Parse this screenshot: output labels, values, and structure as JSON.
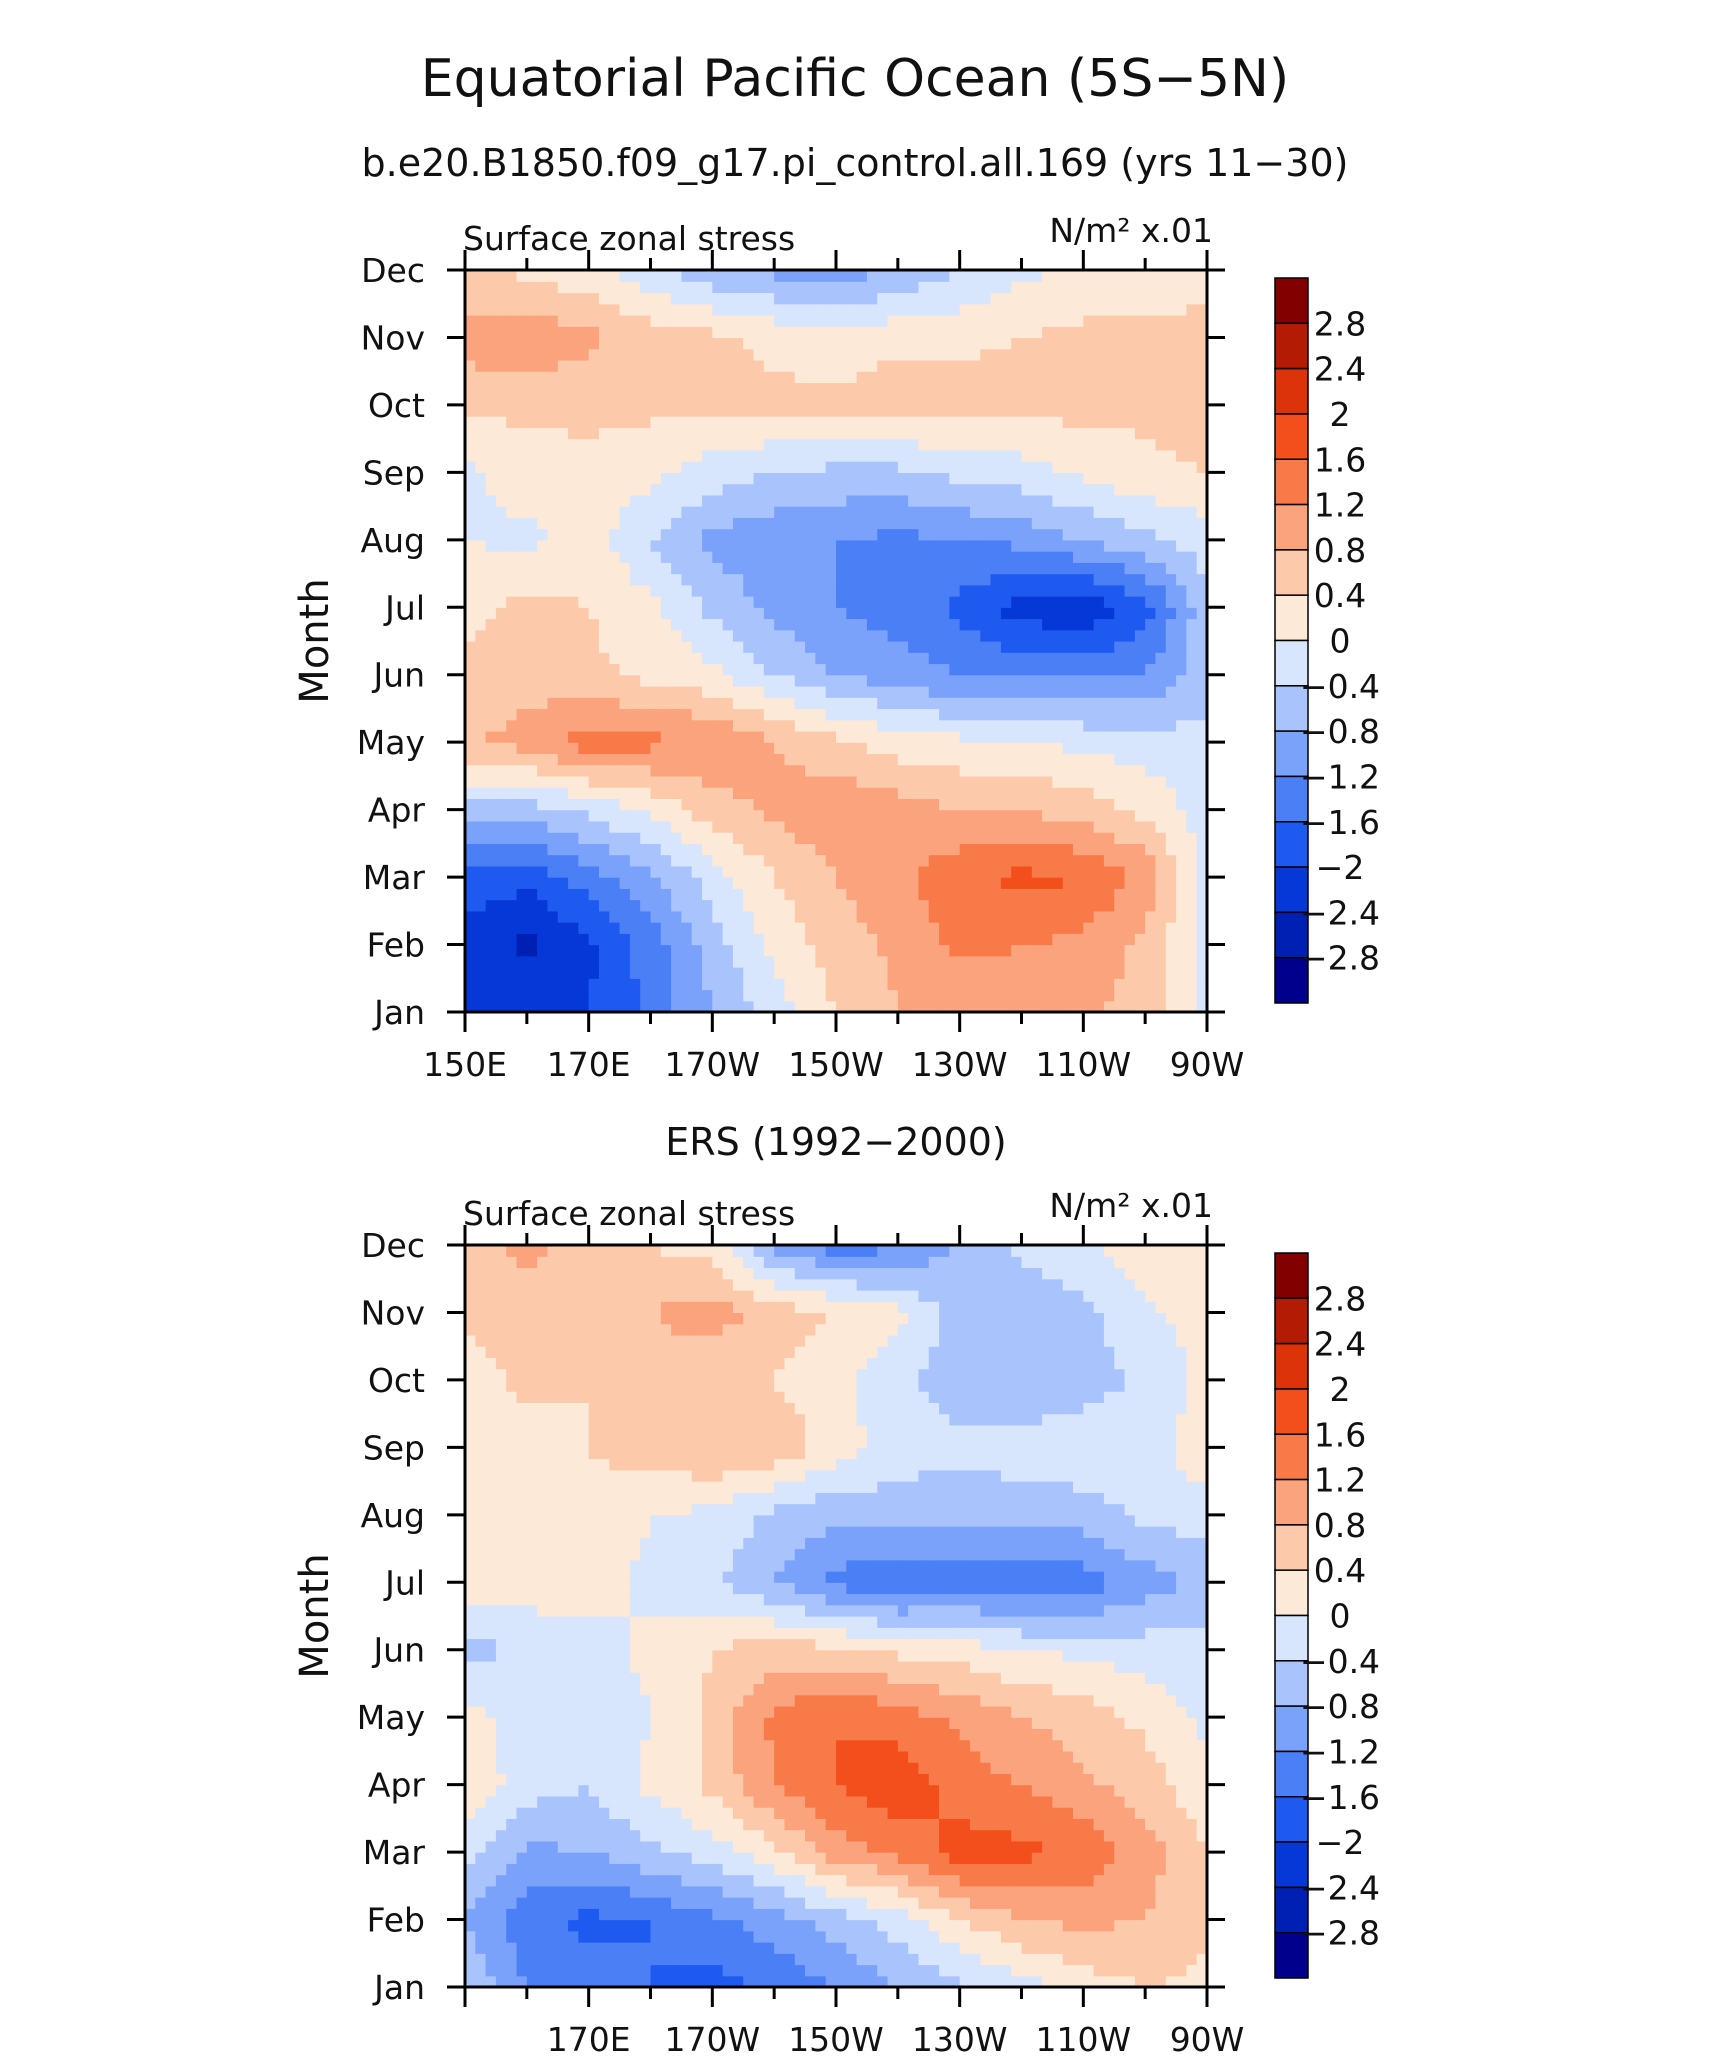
{
  "figure": {
    "title": "Equatorial Pacific Ocean (5S−5N)",
    "subtitle": "b.e20.B1850.f09_g17.pi_control.all.169 (yrs 11−30)"
  },
  "chart_data": [
    {
      "type": "heatmap",
      "panel_title": "",
      "left_label": "Surface zonal stress",
      "units_label": "N/m² x.01",
      "ylabel": "Month",
      "months": [
        "Jan",
        "Feb",
        "Mar",
        "Apr",
        "May",
        "Jun",
        "Jul",
        "Aug",
        "Sep",
        "Oct",
        "Nov",
        "Dec"
      ],
      "x_lon": [
        150,
        160,
        170,
        180,
        190,
        200,
        210,
        220,
        230,
        240,
        250,
        260,
        270
      ],
      "x_tick_lon": [
        150,
        170,
        190,
        210,
        230,
        250,
        270
      ],
      "x_tick_labels": [
        "150E",
        "170E",
        "170W",
        "150W",
        "130W",
        "110W",
        "90W"
      ],
      "values": [
        [
          -2.0,
          -2.1,
          -2.0,
          -1.5,
          -0.8,
          -0.2,
          0.4,
          0.8,
          0.9,
          1.0,
          0.9,
          0.6,
          -0.2
        ],
        [
          -2.2,
          -2.5,
          -2.1,
          -1.4,
          -0.6,
          0.1,
          0.6,
          0.9,
          1.3,
          1.2,
          1.1,
          0.7,
          -0.2
        ],
        [
          -1.7,
          -1.9,
          -1.4,
          -0.9,
          -0.2,
          0.4,
          0.8,
          1.1,
          1.5,
          1.7,
          1.6,
          1.1,
          -0.1
        ],
        [
          -0.5,
          -0.6,
          -0.3,
          0.1,
          0.6,
          0.9,
          1.1,
          1.0,
          0.8,
          0.8,
          0.6,
          0.3,
          -0.2
        ],
        [
          0.7,
          1.0,
          1.4,
          1.3,
          1.2,
          0.8,
          0.5,
          0.2,
          0.1,
          0.0,
          -0.1,
          -0.2,
          -0.3
        ],
        [
          0.5,
          0.6,
          0.5,
          0.3,
          0.1,
          -0.4,
          -0.8,
          -1.0,
          -1.2,
          -1.3,
          -1.3,
          -1.2,
          -0.5
        ],
        [
          0.3,
          0.5,
          0.4,
          0.1,
          -0.5,
          -0.9,
          -1.2,
          -1.4,
          -1.7,
          -2.2,
          -2.3,
          -1.8,
          -0.5
        ],
        [
          0.0,
          -0.1,
          0.2,
          -0.4,
          -0.9,
          -1.1,
          -1.2,
          -1.3,
          -1.2,
          -1.1,
          -0.8,
          -0.5,
          -0.2
        ],
        [
          -0.1,
          0.2,
          0.3,
          0.1,
          -0.2,
          -0.4,
          -0.5,
          -0.5,
          -0.3,
          -0.2,
          0.1,
          0.3,
          0.4
        ],
        [
          0.5,
          0.5,
          0.5,
          0.5,
          0.5,
          0.5,
          0.5,
          0.6,
          0.6,
          0.6,
          0.5,
          0.5,
          0.6
        ],
        [
          1.0,
          1.1,
          0.9,
          0.6,
          0.5,
          0.3,
          0.2,
          0.3,
          0.3,
          0.4,
          0.5,
          0.5,
          0.5
        ],
        [
          0.5,
          0.3,
          0.1,
          -0.3,
          -0.7,
          -0.9,
          -1.0,
          -0.8,
          -0.4,
          -0.1,
          0.1,
          0.2,
          0.3
        ]
      ],
      "colorbar_labels": [
        "2.8",
        "2.4",
        "2",
        "1.6",
        "1.2",
        "0.8",
        "0.4",
        "0",
        "−0.4",
        "−0.8",
        "−1.2",
        "−1.6",
        "−2",
        "−2.4",
        "−2.8"
      ]
    },
    {
      "type": "heatmap",
      "panel_title": "ERS (1992−2000)",
      "left_label": "Surface zonal stress",
      "units_label": "N/m² x.01",
      "ylabel": "Month",
      "months": [
        "Jan",
        "Feb",
        "Mar",
        "Apr",
        "May",
        "Jun",
        "Jul",
        "Aug",
        "Sep",
        "Oct",
        "Nov",
        "Dec"
      ],
      "x_lon": [
        150,
        160,
        170,
        180,
        190,
        200,
        210,
        220,
        230,
        240,
        250,
        260,
        270
      ],
      "x_tick_lon": [
        170,
        190,
        210,
        230,
        250,
        270
      ],
      "x_tick_labels": [
        "170E",
        "170W",
        "150W",
        "130W",
        "110W",
        "90W"
      ],
      "values": [
        [
          -0.4,
          -1.2,
          -1.4,
          -1.6,
          -1.8,
          -1.5,
          -1.2,
          -0.8,
          -0.5,
          -0.2,
          0.2,
          0.4,
          0.3
        ],
        [
          -0.8,
          -1.5,
          -1.7,
          -1.6,
          -1.3,
          -1.0,
          -0.6,
          -0.2,
          0.4,
          0.8,
          0.9,
          0.8,
          0.5
        ],
        [
          -0.3,
          -0.9,
          -0.8,
          -0.5,
          -0.2,
          0.3,
          1.0,
          1.3,
          1.8,
          1.7,
          1.5,
          1.0,
          0.4
        ],
        [
          0.3,
          -0.2,
          -0.4,
          0.1,
          0.5,
          1.2,
          1.6,
          1.9,
          1.4,
          1.2,
          0.9,
          0.6,
          0.1
        ],
        [
          0.2,
          -0.2,
          -0.3,
          0.0,
          0.5,
          1.3,
          1.6,
          1.4,
          1.1,
          0.8,
          0.6,
          0.3,
          -0.1
        ],
        [
          -0.6,
          -0.3,
          -0.2,
          0.1,
          0.4,
          0.6,
          0.5,
          0.3,
          0.2,
          0.0,
          -0.1,
          -0.2,
          -0.2
        ],
        [
          0.3,
          0.2,
          0.2,
          -0.1,
          -0.3,
          -0.8,
          -1.3,
          -1.6,
          -1.4,
          -1.6,
          -1.4,
          -1.0,
          -0.7
        ],
        [
          0.4,
          0.3,
          0.3,
          0.0,
          -0.1,
          -0.5,
          -0.7,
          -0.6,
          -0.7,
          -0.6,
          -0.6,
          -0.3,
          -0.2
        ],
        [
          0.4,
          0.2,
          0.4,
          0.6,
          0.8,
          0.7,
          0.2,
          -0.2,
          -0.3,
          -0.2,
          -0.1,
          -0.2,
          0.3
        ],
        [
          0.2,
          0.5,
          0.4,
          0.6,
          0.5,
          0.4,
          0.1,
          -0.3,
          -0.6,
          -0.8,
          -0.6,
          -0.3,
          0.1
        ],
        [
          0.5,
          0.6,
          0.5,
          0.8,
          1.0,
          0.6,
          0.4,
          0.1,
          -0.6,
          -0.7,
          -0.5,
          -0.1,
          0.2
        ],
        [
          0.7,
          0.9,
          0.6,
          0.4,
          0.2,
          -0.9,
          -1.4,
          -1.3,
          -0.7,
          -0.3,
          -0.1,
          0.3,
          0.4
        ]
      ],
      "colorbar_labels": [
        "2.8",
        "2.4",
        "2",
        "1.6",
        "1.2",
        "0.8",
        "0.4",
        "0",
        "−0.4",
        "−0.8",
        "−1.2",
        "−1.6",
        "−2",
        "−2.4",
        "−2.8"
      ]
    }
  ],
  "colormap": {
    "levels": [
      -2.8,
      -2.4,
      -2.0,
      -1.6,
      -1.2,
      -0.8,
      -0.4,
      0,
      0.4,
      0.8,
      1.2,
      1.6,
      2.0,
      2.4,
      2.8
    ],
    "colors": [
      "#00008c",
      "#0020b4",
      "#0638d8",
      "#1e5af0",
      "#4a7ff6",
      "#7ba2fa",
      "#a9c3fc",
      "#d7e5fd",
      "#fde9d8",
      "#fccaaa",
      "#faa37d",
      "#f87a49",
      "#f24f1c",
      "#dc330a",
      "#b41b04",
      "#820000"
    ]
  }
}
